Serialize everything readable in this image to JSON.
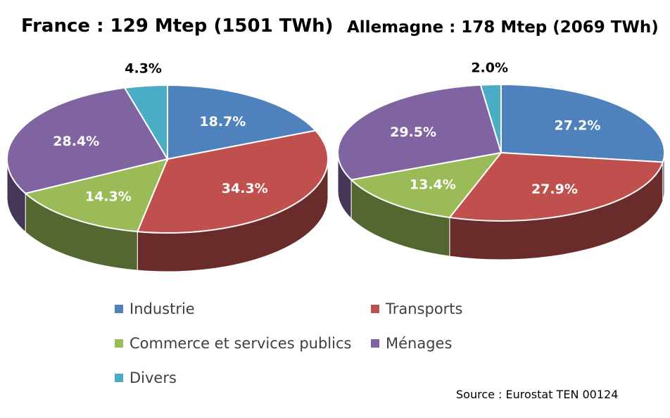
{
  "chart_data": [
    {
      "type": "pie",
      "title": "France : 129 Mtep (1501 TWh)",
      "categories": [
        "Industrie",
        "Transports",
        "Commerce et services publics",
        "Ménages",
        "Divers"
      ],
      "values": [
        18.7,
        34.3,
        14.3,
        28.4,
        4.3
      ],
      "labels": [
        "18.7%",
        "34.3%",
        "14.3%",
        "28.4%",
        "4.3%"
      ]
    },
    {
      "type": "pie",
      "title": "Allemagne : 178 Mtep (2069 TWh)",
      "categories": [
        "Industrie",
        "Transports",
        "Commerce et services publics",
        "Ménages",
        "Divers"
      ],
      "values": [
        27.2,
        27.9,
        13.4,
        29.5,
        2.0
      ],
      "labels": [
        "27.2%",
        "27.9%",
        "13.4%",
        "29.5%",
        "2.0%"
      ]
    }
  ],
  "legend": {
    "position": "bottom",
    "items": [
      {
        "label": "Industrie",
        "color": "#4F81BD"
      },
      {
        "label": "Transports",
        "color": "#C0504D"
      },
      {
        "label": "Commerce et services publics",
        "color": "#9BBB59"
      },
      {
        "label": "Ménages",
        "color": "#8064A2"
      },
      {
        "label": "Divers",
        "color": "#4BACC6"
      }
    ]
  },
  "source": "Source : Eurostat TEN 00124"
}
